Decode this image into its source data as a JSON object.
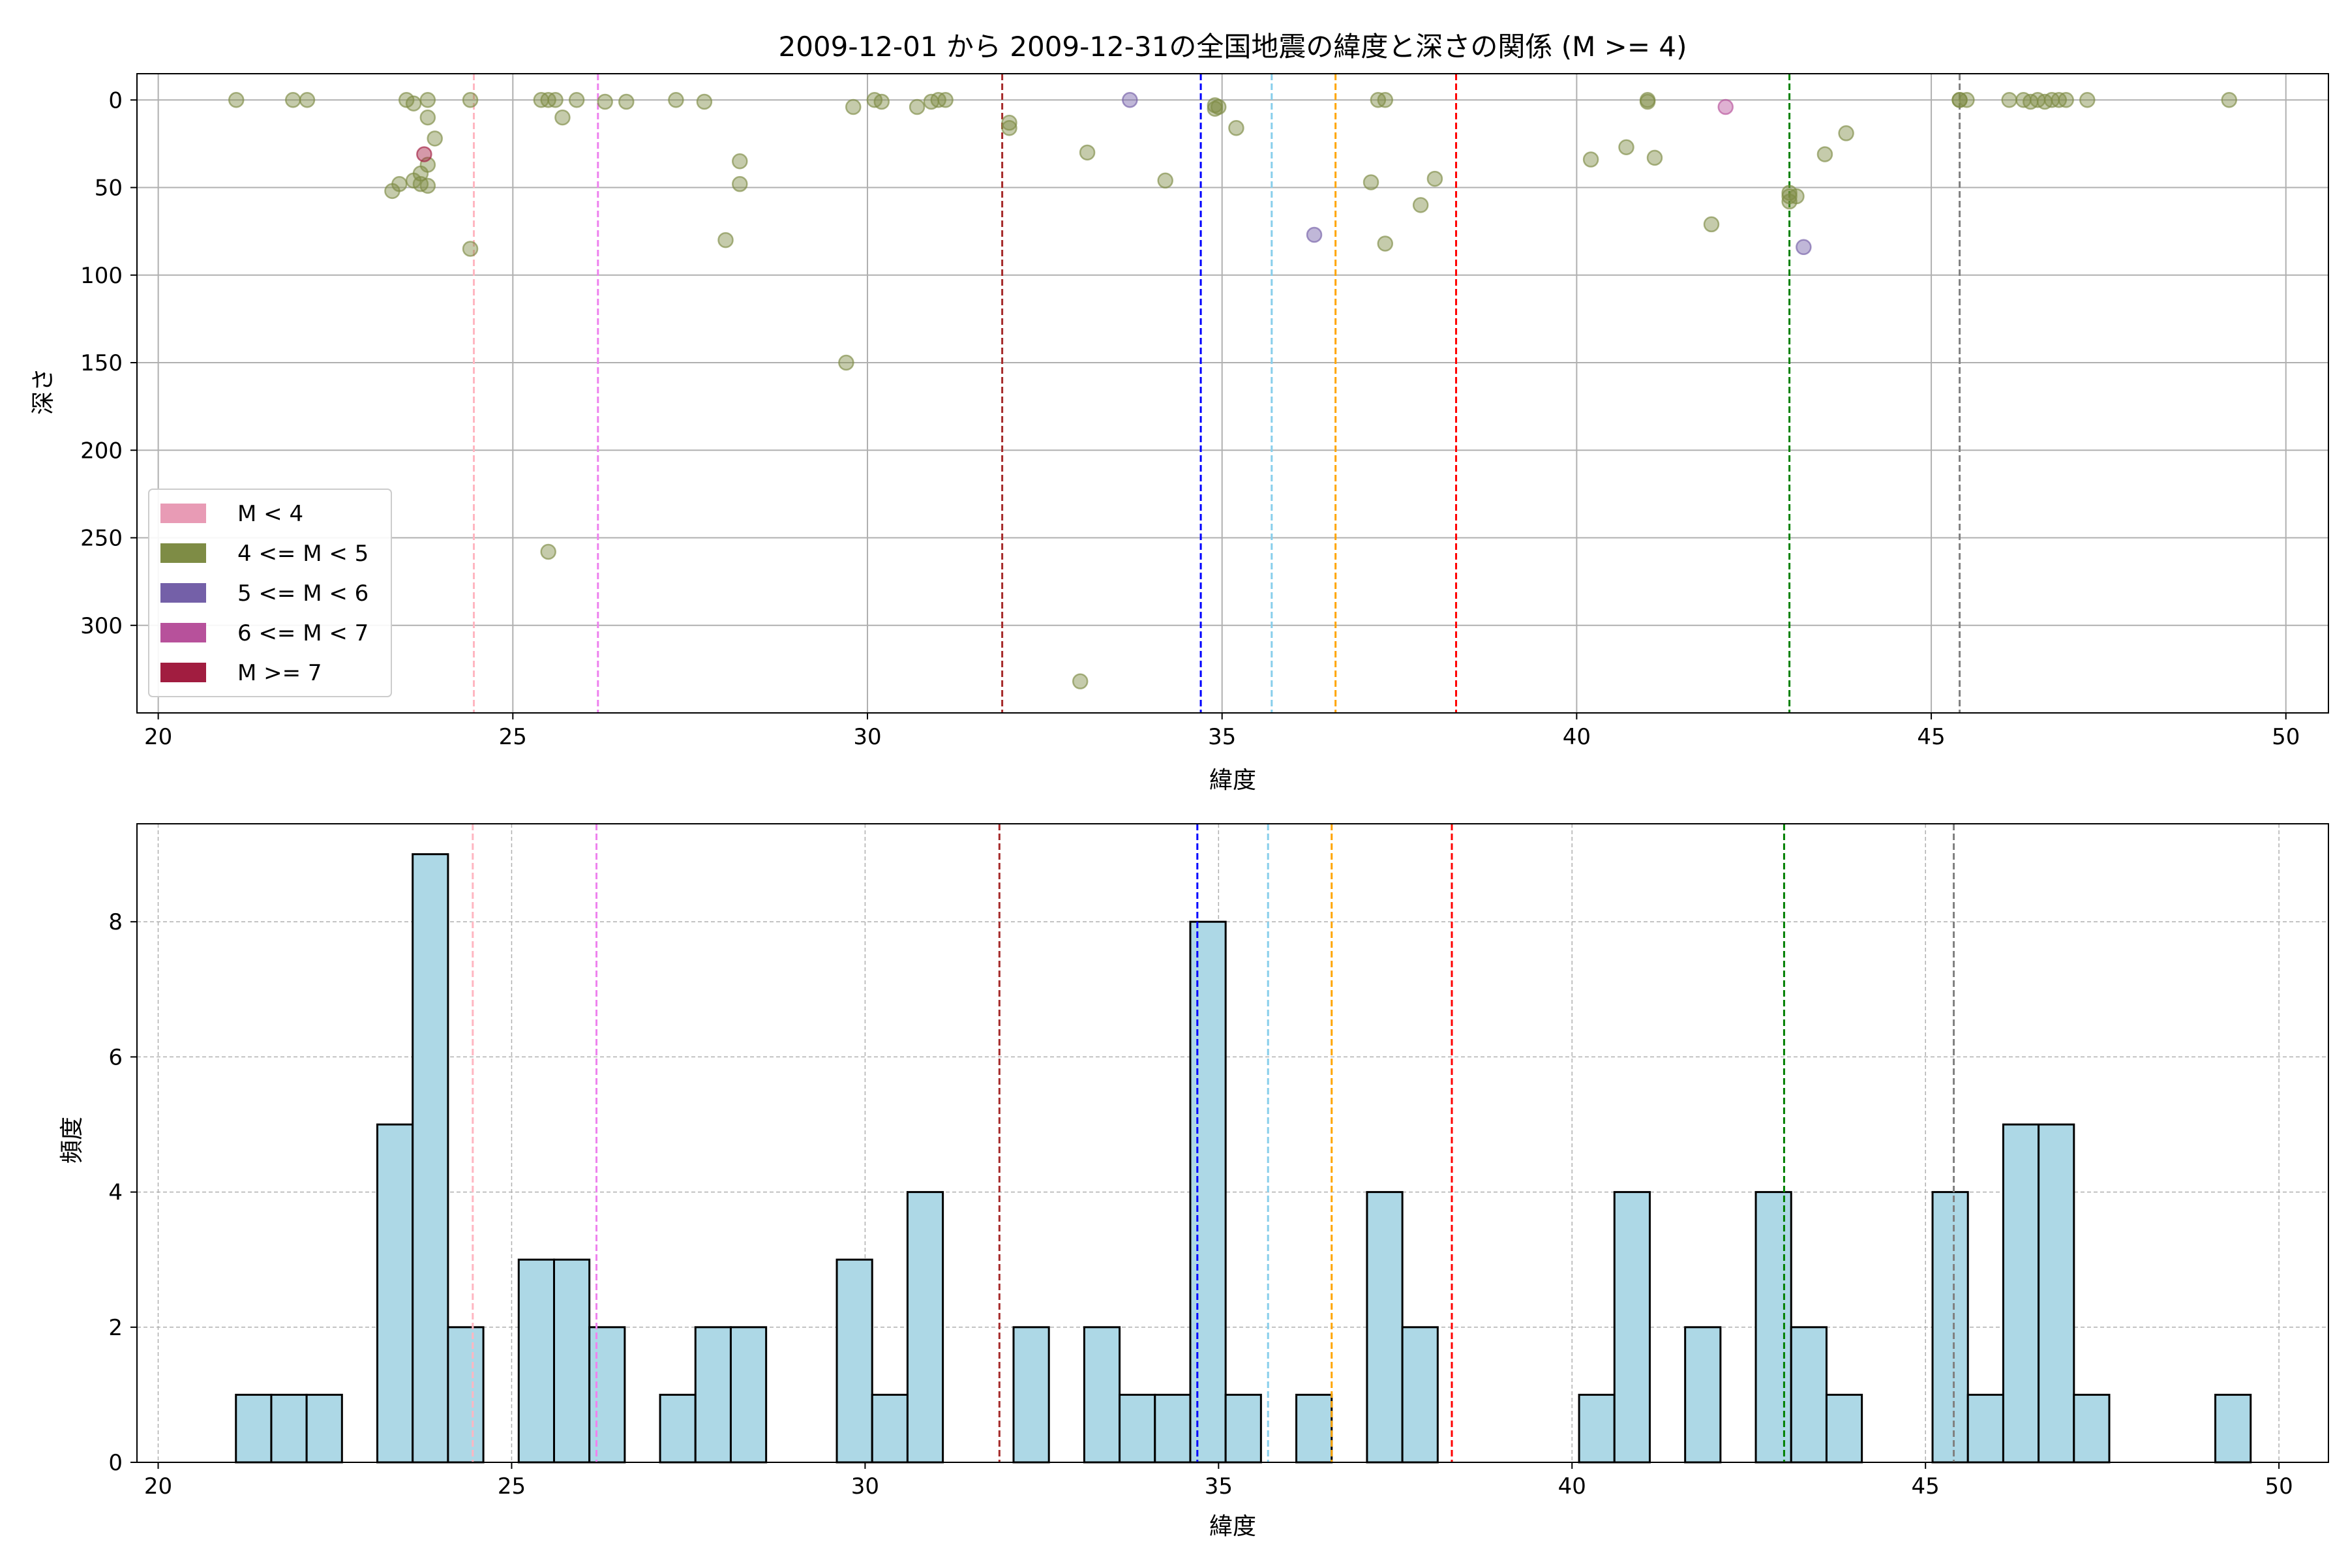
{
  "chart_data": [
    {
      "type": "scatter",
      "title": "2009-12-01 から 2009-12-31の全国地震の緯度と深さの関係 (M >= 4)",
      "xlabel": "緯度",
      "ylabel": "深さ",
      "xlim": [
        19.7,
        50.6
      ],
      "ylim": [
        350,
        -15
      ],
      "y_inverted": true,
      "xticks": [
        20,
        25,
        30,
        35,
        40,
        45,
        50
      ],
      "yticks": [
        0,
        50,
        100,
        150,
        200,
        250,
        300
      ],
      "grid": true,
      "legend_placement": "lower-left",
      "legend": [
        {
          "label": "M < 4",
          "color": "#e89bb5"
        },
        {
          "label": "4 <= M < 5",
          "color": "#7e8c45"
        },
        {
          "label": "5 <= M < 6",
          "color": "#7460a8"
        },
        {
          "label": "6 <= M < 7",
          "color": "#b7519b"
        },
        {
          "label": "M >= 7",
          "color": "#a11d40"
        }
      ],
      "points": [
        {
          "x": 21.1,
          "y": 0,
          "c": 1
        },
        {
          "x": 21.9,
          "y": 0,
          "c": 1
        },
        {
          "x": 22.1,
          "y": 0,
          "c": 1
        },
        {
          "x": 23.3,
          "y": 52,
          "c": 1
        },
        {
          "x": 23.4,
          "y": 48,
          "c": 1
        },
        {
          "x": 23.5,
          "y": 0,
          "c": 1
        },
        {
          "x": 23.6,
          "y": 2,
          "c": 1
        },
        {
          "x": 23.6,
          "y": 46,
          "c": 1
        },
        {
          "x": 23.7,
          "y": 42,
          "c": 1
        },
        {
          "x": 23.7,
          "y": 48,
          "c": 1
        },
        {
          "x": 23.8,
          "y": 0,
          "c": 1
        },
        {
          "x": 23.8,
          "y": 10,
          "c": 1
        },
        {
          "x": 23.8,
          "y": 37,
          "c": 1
        },
        {
          "x": 23.8,
          "y": 49,
          "c": 1
        },
        {
          "x": 23.9,
          "y": 22,
          "c": 1
        },
        {
          "x": 23.75,
          "y": 31,
          "c": 4
        },
        {
          "x": 24.4,
          "y": 0,
          "c": 1
        },
        {
          "x": 24.4,
          "y": 85,
          "c": 1
        },
        {
          "x": 25.4,
          "y": 0,
          "c": 1
        },
        {
          "x": 25.5,
          "y": 0,
          "c": 1
        },
        {
          "x": 25.5,
          "y": 258,
          "c": 1
        },
        {
          "x": 25.6,
          "y": 0,
          "c": 1
        },
        {
          "x": 25.7,
          "y": 10,
          "c": 1
        },
        {
          "x": 25.9,
          "y": 0,
          "c": 1
        },
        {
          "x": 26.3,
          "y": 1,
          "c": 1
        },
        {
          "x": 26.6,
          "y": 1,
          "c": 1
        },
        {
          "x": 27.3,
          "y": 0,
          "c": 1
        },
        {
          "x": 27.7,
          "y": 1,
          "c": 1
        },
        {
          "x": 28.0,
          "y": 80,
          "c": 1
        },
        {
          "x": 28.2,
          "y": 35,
          "c": 1
        },
        {
          "x": 28.2,
          "y": 48,
          "c": 1
        },
        {
          "x": 29.7,
          "y": 150,
          "c": 1
        },
        {
          "x": 29.8,
          "y": 4,
          "c": 1
        },
        {
          "x": 30.1,
          "y": 0,
          "c": 1
        },
        {
          "x": 30.2,
          "y": 1,
          "c": 1
        },
        {
          "x": 30.7,
          "y": 4,
          "c": 1
        },
        {
          "x": 30.9,
          "y": 1,
          "c": 1
        },
        {
          "x": 31.0,
          "y": 0,
          "c": 1
        },
        {
          "x": 31.1,
          "y": 0,
          "c": 1
        },
        {
          "x": 32.0,
          "y": 13,
          "c": 1
        },
        {
          "x": 32.0,
          "y": 16,
          "c": 1
        },
        {
          "x": 33.0,
          "y": 332,
          "c": 1
        },
        {
          "x": 33.1,
          "y": 30,
          "c": 1
        },
        {
          "x": 33.7,
          "y": 0,
          "c": 2
        },
        {
          "x": 34.2,
          "y": 46,
          "c": 1
        },
        {
          "x": 34.9,
          "y": 3,
          "c": 1
        },
        {
          "x": 34.9,
          "y": 5,
          "c": 1
        },
        {
          "x": 34.95,
          "y": 4,
          "c": 1
        },
        {
          "x": 35.2,
          "y": 16,
          "c": 1
        },
        {
          "x": 36.3,
          "y": 77,
          "c": 2
        },
        {
          "x": 37.1,
          "y": 47,
          "c": 1
        },
        {
          "x": 37.2,
          "y": 0,
          "c": 1
        },
        {
          "x": 37.3,
          "y": 0,
          "c": 1
        },
        {
          "x": 37.3,
          "y": 82,
          "c": 1
        },
        {
          "x": 37.8,
          "y": 60,
          "c": 1
        },
        {
          "x": 38.0,
          "y": 45,
          "c": 1
        },
        {
          "x": 40.2,
          "y": 34,
          "c": 1
        },
        {
          "x": 40.7,
          "y": 27,
          "c": 1
        },
        {
          "x": 41.0,
          "y": 0,
          "c": 1
        },
        {
          "x": 41.0,
          "y": 1,
          "c": 1
        },
        {
          "x": 41.1,
          "y": 33,
          "c": 1
        },
        {
          "x": 41.9,
          "y": 71,
          "c": 1
        },
        {
          "x": 42.1,
          "y": 4,
          "c": 3
        },
        {
          "x": 43.0,
          "y": 53,
          "c": 1
        },
        {
          "x": 43.0,
          "y": 58,
          "c": 1
        },
        {
          "x": 43.1,
          "y": 55,
          "c": 1
        },
        {
          "x": 43.0,
          "y": 55,
          "c": 1
        },
        {
          "x": 43.2,
          "y": 84,
          "c": 2
        },
        {
          "x": 43.5,
          "y": 31,
          "c": 1
        },
        {
          "x": 43.8,
          "y": 19,
          "c": 1
        },
        {
          "x": 45.4,
          "y": 0,
          "c": 1
        },
        {
          "x": 45.4,
          "y": 0,
          "c": 1
        },
        {
          "x": 45.5,
          "y": 0,
          "c": 1
        },
        {
          "x": 46.1,
          "y": 0,
          "c": 1
        },
        {
          "x": 46.3,
          "y": 0,
          "c": 1
        },
        {
          "x": 46.4,
          "y": 1,
          "c": 1
        },
        {
          "x": 46.5,
          "y": 0,
          "c": 1
        },
        {
          "x": 46.6,
          "y": 1,
          "c": 1
        },
        {
          "x": 46.7,
          "y": 0,
          "c": 1
        },
        {
          "x": 46.8,
          "y": 0,
          "c": 1
        },
        {
          "x": 46.9,
          "y": 0,
          "c": 1
        },
        {
          "x": 47.2,
          "y": 0,
          "c": 1
        },
        {
          "x": 49.2,
          "y": 0,
          "c": 1
        }
      ],
      "reference_lines": [
        {
          "x": 24.45,
          "color": "#ffb6c1"
        },
        {
          "x": 26.2,
          "color": "#ee82ee"
        },
        {
          "x": 31.9,
          "color": "#a52a2a"
        },
        {
          "x": 34.7,
          "color": "#0000ff"
        },
        {
          "x": 35.7,
          "color": "#87ceeb"
        },
        {
          "x": 36.6,
          "color": "#ffa500"
        },
        {
          "x": 38.3,
          "color": "#ff0000"
        },
        {
          "x": 43.0,
          "color": "#008000"
        },
        {
          "x": 45.4,
          "color": "#808080"
        }
      ]
    },
    {
      "type": "bar",
      "title": "",
      "xlabel": "緯度",
      "ylabel": "頻度",
      "xlim": [
        19.7,
        50.7
      ],
      "ylim": [
        0,
        9.45
      ],
      "xticks": [
        20,
        25,
        30,
        35,
        40,
        45,
        50
      ],
      "yticks": [
        0,
        2,
        4,
        6,
        8
      ],
      "grid": true,
      "bar_color": "#add8e6",
      "bin_width": 0.5,
      "bins": [
        {
          "x": 21.1,
          "count": 1
        },
        {
          "x": 21.6,
          "count": 1
        },
        {
          "x": 22.1,
          "count": 1
        },
        {
          "x": 23.1,
          "count": 5
        },
        {
          "x": 23.6,
          "count": 9
        },
        {
          "x": 24.1,
          "count": 2
        },
        {
          "x": 25.1,
          "count": 3
        },
        {
          "x": 25.6,
          "count": 3
        },
        {
          "x": 26.1,
          "count": 2
        },
        {
          "x": 27.1,
          "count": 1
        },
        {
          "x": 27.6,
          "count": 2
        },
        {
          "x": 28.1,
          "count": 2
        },
        {
          "x": 29.6,
          "count": 3
        },
        {
          "x": 30.1,
          "count": 1
        },
        {
          "x": 30.6,
          "count": 4
        },
        {
          "x": 32.1,
          "count": 2
        },
        {
          "x": 33.1,
          "count": 2
        },
        {
          "x": 33.6,
          "count": 1
        },
        {
          "x": 34.1,
          "count": 1
        },
        {
          "x": 34.6,
          "count": 8
        },
        {
          "x": 35.1,
          "count": 1
        },
        {
          "x": 36.1,
          "count": 1
        },
        {
          "x": 37.1,
          "count": 4
        },
        {
          "x": 37.6,
          "count": 2
        },
        {
          "x": 40.1,
          "count": 1
        },
        {
          "x": 40.6,
          "count": 4
        },
        {
          "x": 41.6,
          "count": 2
        },
        {
          "x": 42.6,
          "count": 4
        },
        {
          "x": 43.1,
          "count": 2
        },
        {
          "x": 43.6,
          "count": 1
        },
        {
          "x": 45.1,
          "count": 4
        },
        {
          "x": 45.6,
          "count": 1
        },
        {
          "x": 46.1,
          "count": 5
        },
        {
          "x": 46.6,
          "count": 5
        },
        {
          "x": 47.1,
          "count": 1
        },
        {
          "x": 49.1,
          "count": 1
        }
      ],
      "reference_lines": [
        {
          "x": 24.45,
          "color": "#ffb6c1"
        },
        {
          "x": 26.2,
          "color": "#ee82ee"
        },
        {
          "x": 31.9,
          "color": "#a52a2a"
        },
        {
          "x": 34.7,
          "color": "#0000ff"
        },
        {
          "x": 35.7,
          "color": "#87ceeb"
        },
        {
          "x": 36.6,
          "color": "#ffa500"
        },
        {
          "x": 38.3,
          "color": "#ff0000"
        },
        {
          "x": 43.0,
          "color": "#008000"
        },
        {
          "x": 45.4,
          "color": "#808080"
        }
      ]
    }
  ]
}
